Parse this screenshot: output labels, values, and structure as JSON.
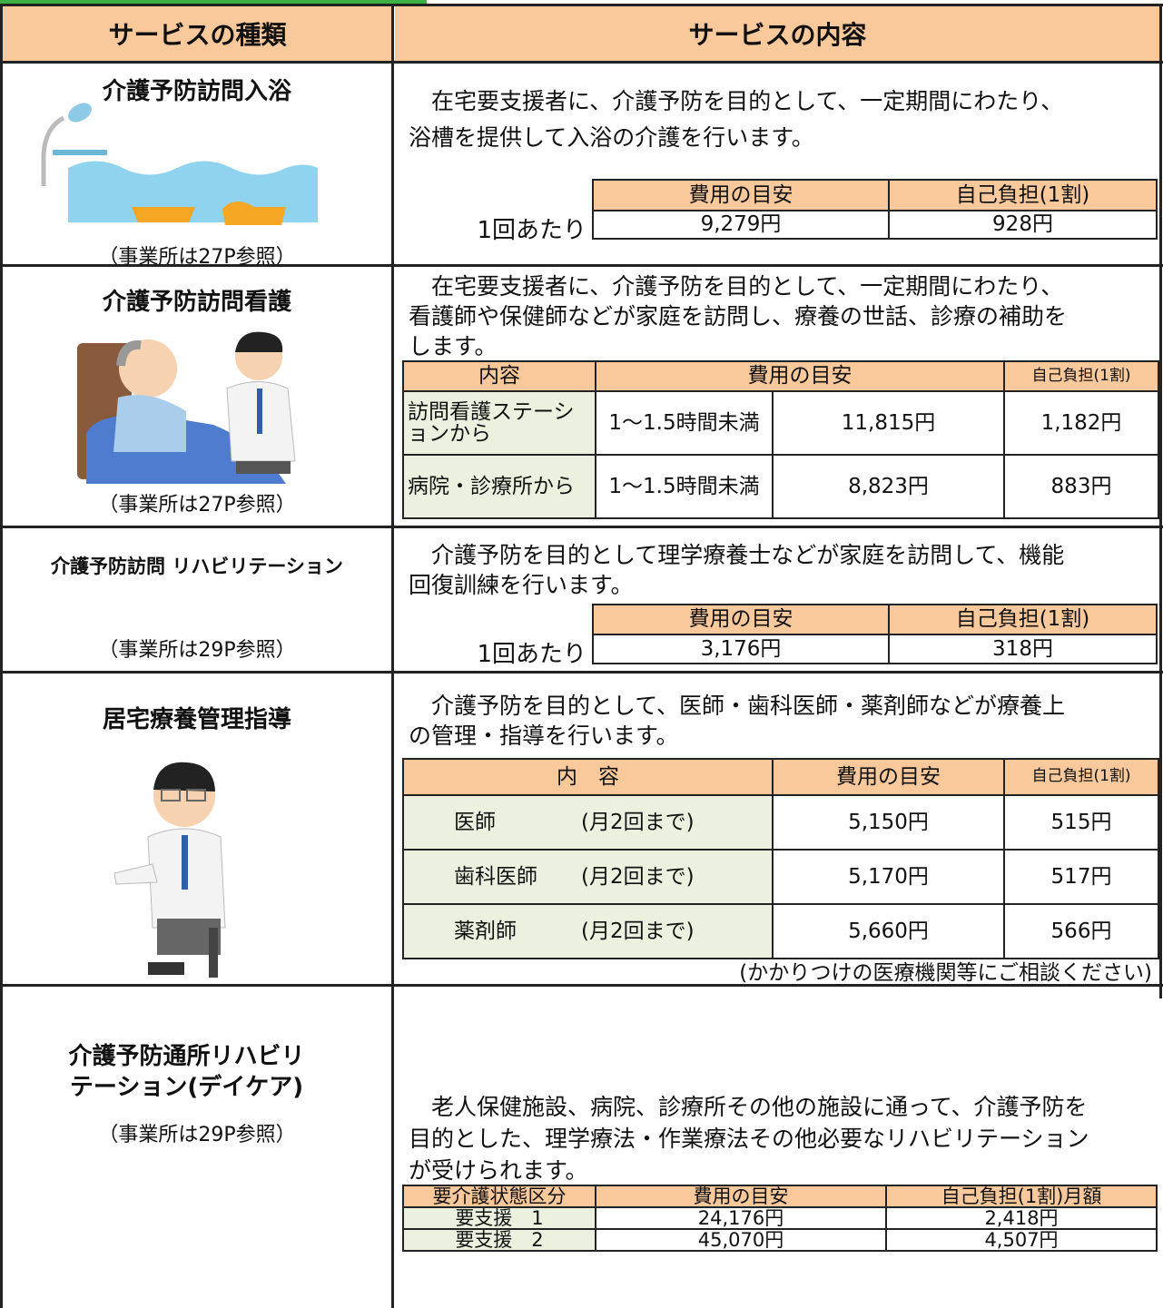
{
  "header": {
    "col1": "サービスの種類",
    "col2": "サービスの内容"
  },
  "services": [
    {
      "name": "介護予防訪問入浴",
      "description_lines": [
        "　在宅要支援者に、介護予防を目的として、一定期間にわたり、",
        "浴槽を提供して入浴の介護を行います。"
      ],
      "note": "（事業所は27P参照）",
      "fee_table": {
        "row_label": "1回あたり",
        "header": [
          "費用の目安",
          "自己負担(1割)"
        ],
        "rows": [
          [
            "9,279円",
            "928円"
          ]
        ]
      }
    },
    {
      "name": "介護予防訪問看護",
      "description_lines": [
        "　在宅要支援者に、介護予防を目的として、一定期間にわたり、",
        "看護師や保健師などが家庭を訪問し、療養の世話、診療の補助を",
        "します。"
      ],
      "note": "（事業所は27P参照）",
      "fee_table": {
        "header": [
          "内容",
          "費用の目安",
          "自己負担(1割)"
        ],
        "rows": [
          [
            "訪問看護ステーションから",
            "1〜1.5時間未満",
            "11,815円",
            "1,182円"
          ],
          [
            "病院・診療所から",
            "1〜1.5時間未満",
            "8,823円",
            "883円"
          ]
        ]
      }
    },
    {
      "name": "介護予防訪問 リハビリテーション",
      "description_lines": [
        "　介護予防を目的として理学療養士などが家庭を訪問して、機能",
        "回復訓練を行います。"
      ],
      "note": "（事業所は29P参照）",
      "fee_table": {
        "row_label": "1回あたり",
        "header": [
          "費用の目安",
          "自己負担(1割)"
        ],
        "rows": [
          [
            "3,176円",
            "318円"
          ]
        ]
      }
    },
    {
      "name": "居宅療養管理指導",
      "description_lines": [
        "　介護予防を目的として、医師・歯科医師・薬剤師などが療養上",
        "の管理・指導を行います。"
      ],
      "fee_table": {
        "header": [
          "内　容",
          "費用の目安",
          "自己負担(1割)"
        ],
        "rows": [
          [
            "医師",
            "(月2回まで)",
            "5,150円",
            "515円"
          ],
          [
            "歯科医師",
            "(月2回まで)",
            "5,170円",
            "517円"
          ],
          [
            "薬剤師",
            "(月2回まで)",
            "5,660円",
            "566円"
          ]
        ],
        "footnote": "(かかりつけの医療機関等にご相談ください)"
      }
    },
    {
      "name_lines": [
        "介護予防通所リハビリ",
        "テーション(デイケア)"
      ],
      "note": "（事業所は29P参照）",
      "description_lines": [
        "　老人保健施設、病院、診療所その他の施設に通って、介護予防を",
        "目的とした、理学療法・作業療法その他必要なリハビリテーション",
        "が受けられます。"
      ],
      "fee_table": {
        "header": [
          "要介護状態区分",
          "費用の目安",
          "自己負担(1割)月額"
        ],
        "rows": [
          [
            "要支援　1",
            "24,176円",
            "2,418円"
          ],
          [
            "要支援　2",
            "45,070円",
            "4,507円"
          ]
        ]
      }
    }
  ]
}
